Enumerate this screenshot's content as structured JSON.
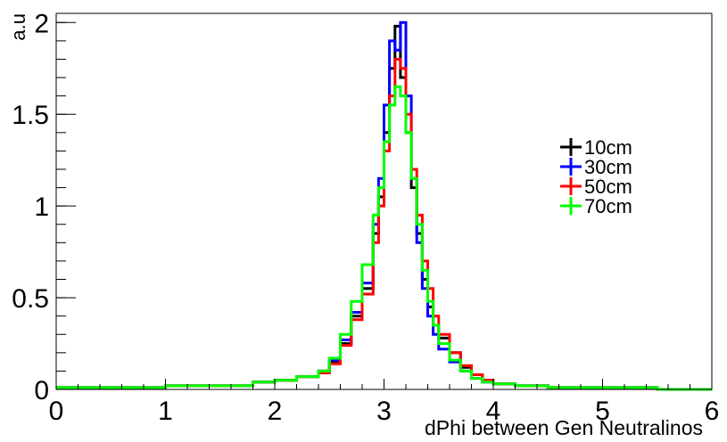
{
  "chart_data": {
    "type": "line",
    "title": "",
    "xlabel": "dPhi between Gen Neutralinos",
    "ylabel": "a.u",
    "xlim": [
      0,
      6
    ],
    "ylim": [
      0,
      2.05
    ],
    "x_ticks": [
      "0",
      "1",
      "2",
      "3",
      "4",
      "5",
      "6"
    ],
    "y_ticks": [
      "0",
      "0.5",
      "1",
      "1.5",
      "2"
    ],
    "x_tick_values": [
      0,
      1,
      2,
      3,
      4,
      5,
      6
    ],
    "y_tick_values": [
      0,
      0.5,
      1,
      1.5,
      2
    ],
    "grid": false,
    "legend_position": "right",
    "series": [
      {
        "name": "10cm",
        "color": "#000000",
        "x": [
          0.0,
          0.5,
          1.0,
          1.5,
          1.8,
          2.0,
          2.2,
          2.4,
          2.5,
          2.6,
          2.7,
          2.8,
          2.9,
          2.95,
          3.0,
          3.05,
          3.1,
          3.15,
          3.2,
          3.25,
          3.3,
          3.35,
          3.4,
          3.45,
          3.5,
          3.6,
          3.7,
          3.8,
          3.9,
          4.0,
          4.2,
          4.5,
          5.0,
          5.5,
          6.0
        ],
        "y": [
          0.01,
          0.01,
          0.02,
          0.02,
          0.04,
          0.05,
          0.07,
          0.1,
          0.15,
          0.25,
          0.4,
          0.55,
          0.85,
          1.05,
          1.4,
          1.75,
          1.98,
          1.7,
          1.4,
          1.1,
          0.85,
          0.6,
          0.45,
          0.35,
          0.28,
          0.2,
          0.12,
          0.08,
          0.05,
          0.03,
          0.02,
          0.01,
          0.01,
          0.0,
          0.0
        ]
      },
      {
        "name": "30cm",
        "color": "#0000ff",
        "x": [
          0.0,
          0.5,
          1.0,
          1.5,
          1.8,
          2.0,
          2.2,
          2.4,
          2.5,
          2.6,
          2.7,
          2.8,
          2.9,
          2.95,
          3.0,
          3.05,
          3.1,
          3.15,
          3.2,
          3.25,
          3.3,
          3.35,
          3.4,
          3.45,
          3.5,
          3.6,
          3.7,
          3.8,
          3.9,
          4.0,
          4.2,
          4.5,
          5.0,
          5.5,
          6.0
        ],
        "y": [
          0.01,
          0.01,
          0.02,
          0.02,
          0.04,
          0.05,
          0.07,
          0.1,
          0.16,
          0.27,
          0.42,
          0.58,
          0.9,
          1.15,
          1.55,
          1.9,
          1.85,
          2.0,
          1.6,
          1.15,
          0.8,
          0.55,
          0.4,
          0.3,
          0.22,
          0.15,
          0.1,
          0.06,
          0.04,
          0.03,
          0.02,
          0.01,
          0.01,
          0.0,
          0.0
        ]
      },
      {
        "name": "50cm",
        "color": "#ff0000",
        "x": [
          0.0,
          0.5,
          1.0,
          1.5,
          1.8,
          2.0,
          2.2,
          2.4,
          2.5,
          2.6,
          2.7,
          2.8,
          2.9,
          2.95,
          3.0,
          3.05,
          3.1,
          3.15,
          3.2,
          3.25,
          3.3,
          3.35,
          3.4,
          3.45,
          3.5,
          3.6,
          3.7,
          3.8,
          3.9,
          4.0,
          4.2,
          4.5,
          5.0,
          5.5,
          6.0
        ],
        "y": [
          0.01,
          0.01,
          0.02,
          0.02,
          0.04,
          0.05,
          0.07,
          0.09,
          0.14,
          0.24,
          0.38,
          0.52,
          0.8,
          1.0,
          1.3,
          1.6,
          1.8,
          1.75,
          1.5,
          1.2,
          0.95,
          0.7,
          0.55,
          0.4,
          0.3,
          0.2,
          0.13,
          0.08,
          0.05,
          0.03,
          0.02,
          0.01,
          0.01,
          0.0,
          0.0
        ]
      },
      {
        "name": "70cm",
        "color": "#00ff00",
        "x": [
          0.0,
          0.5,
          1.0,
          1.5,
          1.8,
          2.0,
          2.2,
          2.4,
          2.5,
          2.6,
          2.7,
          2.8,
          2.9,
          2.95,
          3.0,
          3.05,
          3.1,
          3.15,
          3.2,
          3.25,
          3.3,
          3.35,
          3.4,
          3.45,
          3.5,
          3.6,
          3.7,
          3.8,
          3.9,
          4.0,
          4.2,
          4.5,
          5.0,
          5.5,
          6.0
        ],
        "y": [
          0.01,
          0.01,
          0.02,
          0.02,
          0.04,
          0.05,
          0.07,
          0.1,
          0.17,
          0.3,
          0.48,
          0.68,
          0.95,
          1.1,
          1.35,
          1.55,
          1.65,
          1.6,
          1.4,
          1.15,
          0.9,
          0.65,
          0.48,
          0.35,
          0.25,
          0.16,
          0.1,
          0.06,
          0.04,
          0.03,
          0.02,
          0.01,
          0.01,
          0.0,
          0.0
        ]
      }
    ]
  }
}
